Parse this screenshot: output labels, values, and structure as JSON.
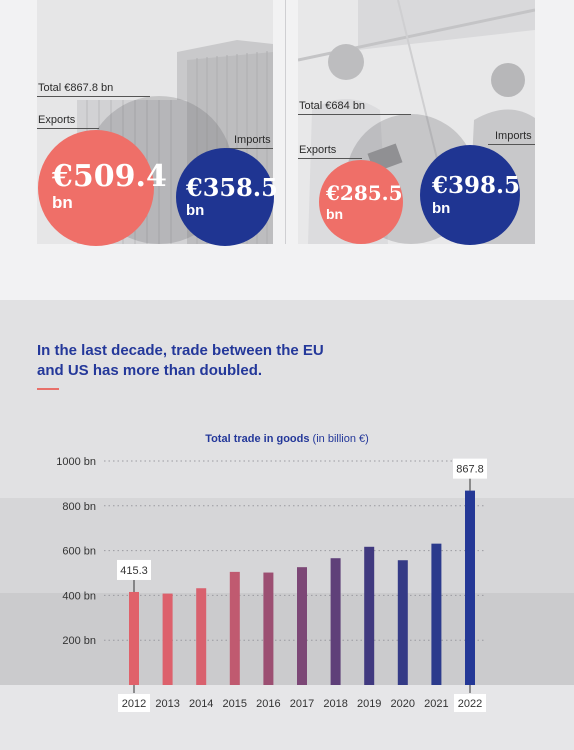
{
  "left_panel": {
    "total_label": "Total €867.8 bn",
    "exports_label": "Exports",
    "imports_label": "Imports",
    "exports_value": "€509.4",
    "exports_unit": "bn",
    "imports_value": "€358.5",
    "imports_unit": "bn"
  },
  "right_panel": {
    "total_label": "Total €684 bn",
    "exports_label": "Exports",
    "imports_label": "Imports",
    "exports_value": "€285.5",
    "exports_unit": "bn",
    "imports_value": "€398.5",
    "imports_unit": "bn"
  },
  "colors": {
    "exports": "#ef6f68",
    "imports": "#1f3592",
    "headline": "#24389a"
  },
  "headline": "In the last decade, trade between the EU and US has more than doubled.",
  "chart_title_bold": "Total trade in goods",
  "chart_title_rest": " (in billion €)",
  "chart_data": {
    "type": "bar",
    "title": "Total trade in goods (in billion €)",
    "categories": [
      "2012",
      "2013",
      "2014",
      "2015",
      "2016",
      "2017",
      "2018",
      "2019",
      "2020",
      "2021",
      "2022"
    ],
    "values": [
      415.3,
      408,
      432,
      505,
      502,
      526,
      566,
      617,
      557,
      631,
      867.8
    ],
    "bar_colors": [
      "#e0616a",
      "#dd616c",
      "#d9616e",
      "#c05a70",
      "#9c4f72",
      "#7c4776",
      "#5f4079",
      "#40397f",
      "#343a86",
      "#2b3a8c",
      "#243896"
    ],
    "y_ticks": [
      200,
      400,
      600,
      800,
      1000
    ],
    "y_tick_labels": [
      "200 bn",
      "400 bn",
      "600 bn",
      "800 bn",
      "1000 bn"
    ],
    "ylim": [
      0,
      1000
    ],
    "data_labels": [
      {
        "category": "2012",
        "text": "415.3"
      },
      {
        "category": "2022",
        "text": "867.8"
      }
    ],
    "highlighted_categories": [
      "2012",
      "2022"
    ],
    "grid": "dotted horizontal"
  }
}
